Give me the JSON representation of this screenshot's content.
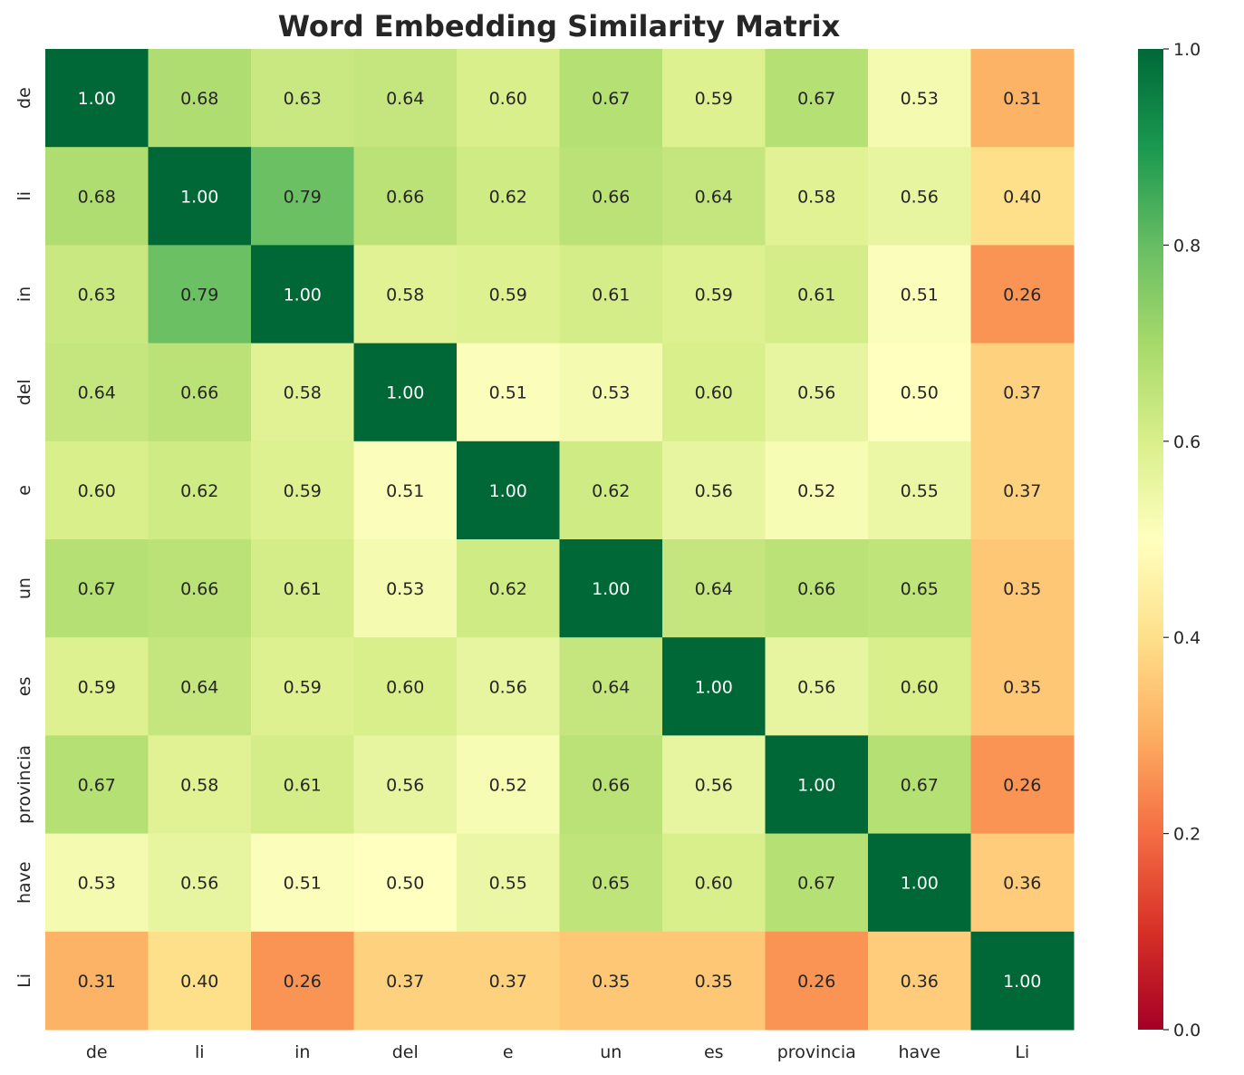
{
  "chart_data": {
    "type": "heatmap",
    "title": "Word Embedding Similarity Matrix",
    "xlabel": "",
    "ylabel": "",
    "x_categories": [
      "de",
      "li",
      "in",
      "del",
      "e",
      "un",
      "es",
      "provincia",
      "have",
      "Li"
    ],
    "y_categories": [
      "de",
      "li",
      "in",
      "del",
      "e",
      "un",
      "es",
      "provincia",
      "have",
      "Li"
    ],
    "values": [
      [
        1.0,
        0.68,
        0.63,
        0.64,
        0.6,
        0.67,
        0.59,
        0.67,
        0.53,
        0.31
      ],
      [
        0.68,
        1.0,
        0.79,
        0.66,
        0.62,
        0.66,
        0.64,
        0.58,
        0.56,
        0.4
      ],
      [
        0.63,
        0.79,
        1.0,
        0.58,
        0.59,
        0.61,
        0.59,
        0.61,
        0.51,
        0.26
      ],
      [
        0.64,
        0.66,
        0.58,
        1.0,
        0.51,
        0.53,
        0.6,
        0.56,
        0.5,
        0.37
      ],
      [
        0.6,
        0.62,
        0.59,
        0.51,
        1.0,
        0.62,
        0.56,
        0.52,
        0.55,
        0.37
      ],
      [
        0.67,
        0.66,
        0.61,
        0.53,
        0.62,
        1.0,
        0.64,
        0.66,
        0.65,
        0.35
      ],
      [
        0.59,
        0.64,
        0.59,
        0.6,
        0.56,
        0.64,
        1.0,
        0.56,
        0.6,
        0.35
      ],
      [
        0.67,
        0.58,
        0.61,
        0.56,
        0.52,
        0.66,
        0.56,
        1.0,
        0.67,
        0.26
      ],
      [
        0.53,
        0.56,
        0.51,
        0.5,
        0.55,
        0.65,
        0.6,
        0.67,
        1.0,
        0.36
      ],
      [
        0.31,
        0.4,
        0.26,
        0.37,
        0.37,
        0.35,
        0.35,
        0.26,
        0.36,
        1.0
      ]
    ],
    "value_format": "2 decimals",
    "colormap": "RdYlGn",
    "vmin": 0.0,
    "vmax": 1.0,
    "colorbar_ticks": [
      "0.0",
      "0.2",
      "0.4",
      "0.6",
      "0.8",
      "1.0"
    ],
    "colorbar_placement": "right",
    "grid": false
  }
}
